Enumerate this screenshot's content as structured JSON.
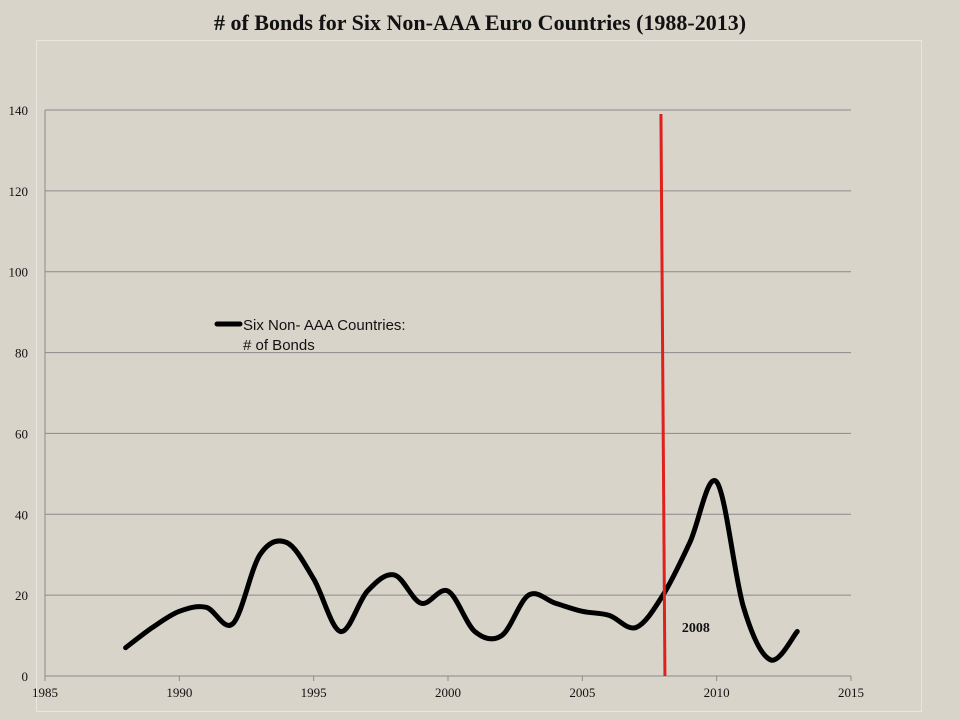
{
  "chart_data": {
    "type": "line",
    "title": "# of Bonds for Six Non-AAA Euro Countries (1988-2013)",
    "xlabel": "",
    "ylabel": "",
    "xlim": [
      1985,
      2015
    ],
    "ylim": [
      0,
      140
    ],
    "x_ticks": [
      1985,
      1990,
      1995,
      2000,
      2005,
      2010,
      2015
    ],
    "y_ticks": [
      0,
      20,
      40,
      60,
      80,
      100,
      120,
      140
    ],
    "grid": "horizontal",
    "legend": {
      "placement": "middle-left",
      "lines": [
        "Six Non- AAA Countries:",
        "# of Bonds"
      ]
    },
    "series": [
      {
        "name": "Six Non- AAA Countries: # of Bonds",
        "color": "#000000",
        "x": [
          1988,
          1989,
          1990,
          1991,
          1992,
          1993,
          1994,
          1995,
          1996,
          1997,
          1998,
          1999,
          2000,
          2001,
          2002,
          2003,
          2004,
          2005,
          2006,
          2007,
          2008,
          2009,
          2010,
          2011,
          2012,
          2013
        ],
        "y": [
          7,
          12,
          16,
          17,
          13,
          30,
          33,
          24,
          11,
          21,
          25,
          18,
          21,
          11,
          10,
          20,
          18,
          16,
          15,
          12,
          20,
          33,
          48,
          17,
          4,
          11
        ]
      }
    ],
    "reference_line": {
      "x": 2008,
      "color": "#e0201c",
      "label": "2008"
    }
  }
}
